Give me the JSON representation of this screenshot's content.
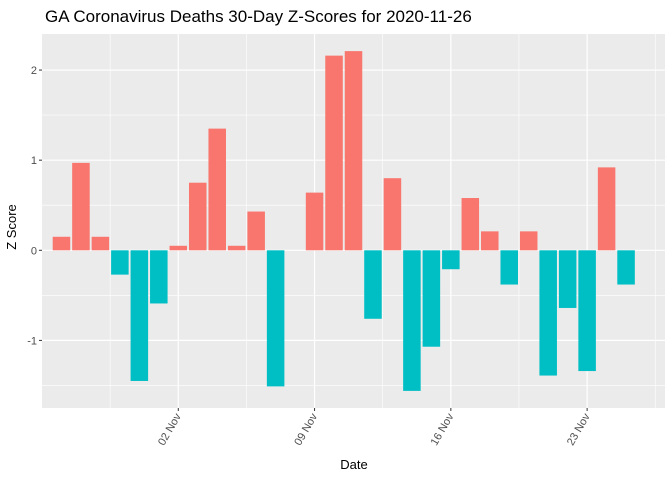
{
  "chart_data": {
    "type": "bar",
    "title": "GA Coronavirus Deaths 30-Day Z-Scores for 2020-11-26",
    "xlabel": "Date",
    "ylabel": "Z Score",
    "ylim": [
      -1.75,
      2.4
    ],
    "y_ticks": [
      -1,
      0,
      1,
      2
    ],
    "x_ticks": [
      {
        "label": "02 Nov",
        "date": "2020-11-02"
      },
      {
        "label": "09 Nov",
        "date": "2020-11-09"
      },
      {
        "label": "16 Nov",
        "date": "2020-11-16"
      },
      {
        "label": "23 Nov",
        "date": "2020-11-23"
      }
    ],
    "x_range": [
      "2020-10-26",
      "2020-11-27"
    ],
    "colors": {
      "positive": "#F8766D",
      "negative": "#00BFC4",
      "panel": "#EBEBEB",
      "grid": "#FFFFFF"
    },
    "series": [
      {
        "name": "Z Score",
        "dates": [
          "2020-10-27",
          "2020-10-28",
          "2020-10-29",
          "2020-10-30",
          "2020-10-31",
          "2020-11-01",
          "2020-11-02",
          "2020-11-03",
          "2020-11-04",
          "2020-11-05",
          "2020-11-06",
          "2020-11-07",
          "2020-11-08",
          "2020-11-09",
          "2020-11-10",
          "2020-11-11",
          "2020-11-12",
          "2020-11-13",
          "2020-11-14",
          "2020-11-15",
          "2020-11-16",
          "2020-11-17",
          "2020-11-18",
          "2020-11-19",
          "2020-11-20",
          "2020-11-21",
          "2020-11-22",
          "2020-11-23",
          "2020-11-24",
          "2020-11-25",
          "2020-11-26"
        ],
        "values": [
          0.15,
          0.97,
          0.15,
          -0.27,
          -1.45,
          -0.59,
          0.05,
          0.75,
          1.35,
          0.05,
          0.43,
          -1.51,
          0.0,
          0.64,
          2.16,
          2.21,
          -0.76,
          0.8,
          -1.56,
          -1.07,
          -0.21,
          0.58,
          0.21,
          -0.38,
          0.21,
          -1.39,
          -0.64,
          -1.34,
          0.92,
          -0.38,
          0.0
        ]
      }
    ]
  }
}
